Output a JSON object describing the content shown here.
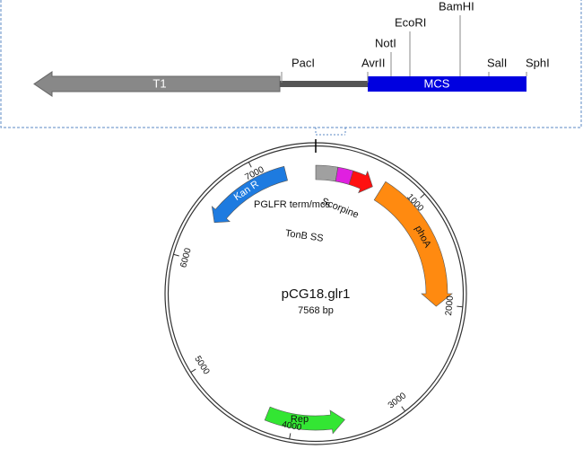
{
  "linear_map": {
    "sites": [
      "PacI",
      "AvrII",
      "NotI",
      "EcoRI",
      "BamHI",
      "SalI",
      "SphI"
    ],
    "features": [
      "T1",
      "MCS"
    ]
  },
  "plasmid": {
    "name": "pCG18.glr1",
    "length": "7568 bp",
    "ticks": [
      "1000",
      "2000",
      "3000",
      "4000",
      "5000",
      "6000",
      "7000"
    ],
    "features": [
      "Kan R",
      "PGLFR term/mcs",
      "TonB SS",
      "Scorpine",
      "phoA",
      "Rep"
    ]
  }
}
